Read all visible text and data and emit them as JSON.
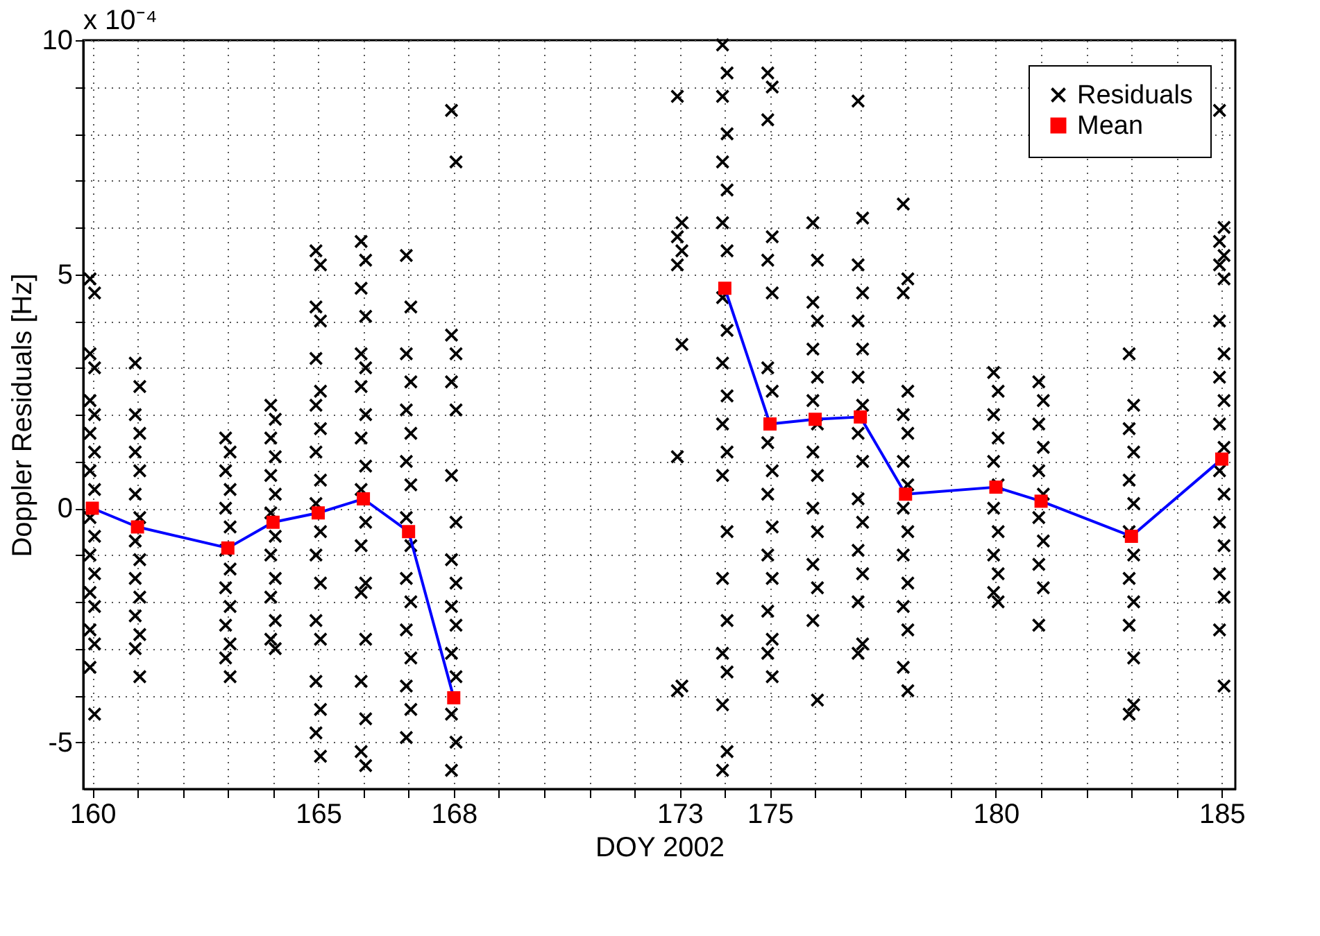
{
  "chart_data": {
    "type": "scatter",
    "xlabel": "DOY 2002",
    "ylabel": "Doppler Residuals [Hz]",
    "annotations": [
      "x 10⁻⁴"
    ],
    "xlim": [
      159.8,
      185.3
    ],
    "ylim": [
      -6,
      10
    ],
    "xticks": [
      160,
      {
        "value": 161,
        "label": null
      },
      {
        "value": 162,
        "label": null
      },
      {
        "value": 163,
        "label": null
      },
      {
        "value": 164,
        "label": null
      },
      165,
      {
        "value": 166,
        "label": null
      },
      {
        "value": 167,
        "label": null
      },
      168,
      {
        "value": 169,
        "label": null
      },
      {
        "value": 170,
        "label": null
      },
      {
        "value": 171,
        "label": null
      },
      {
        "value": 172,
        "label": null
      },
      173,
      {
        "value": 174,
        "label": null
      },
      175,
      {
        "value": 176,
        "label": null
      },
      {
        "value": 177,
        "label": null
      },
      {
        "value": 178,
        "label": null
      },
      {
        "value": 179,
        "label": null
      },
      180,
      {
        "value": 181,
        "label": null
      },
      {
        "value": 182,
        "label": null
      },
      {
        "value": 183,
        "label": null
      },
      {
        "value": 184,
        "label": null
      },
      185
    ],
    "yticks": [
      -5,
      {
        "value": -4,
        "label": null
      },
      {
        "value": -3,
        "label": null
      },
      {
        "value": -2,
        "label": null
      },
      {
        "value": -1,
        "label": null
      },
      0,
      {
        "value": 1,
        "label": null
      },
      {
        "value": 2,
        "label": null
      },
      {
        "value": 3,
        "label": null
      },
      {
        "value": 4,
        "label": null
      },
      5,
      {
        "value": 6,
        "label": null
      },
      {
        "value": 7,
        "label": null
      },
      {
        "value": 8,
        "label": null
      },
      {
        "value": 9,
        "label": null
      },
      10
    ],
    "grid": true,
    "legend": "top right",
    "series": [
      {
        "name": "Residuals",
        "marker": "cross",
        "color": "#000000",
        "x": [
          159.95,
          160.05,
          159.95,
          160.05,
          159.95,
          160.05,
          159.95,
          160.05,
          159.95,
          160.05,
          159.95,
          160.05,
          159.95,
          160.05,
          159.95,
          160.05,
          159.95,
          160.05,
          159.95,
          160.05,
          160.95,
          161.05,
          160.95,
          161.05,
          160.95,
          161.05,
          160.95,
          161.05,
          160.95,
          161.05,
          160.95,
          161.05,
          160.95,
          161.05,
          160.95,
          161.05,
          162.95,
          163.05,
          162.95,
          163.05,
          162.95,
          163.05,
          162.95,
          163.05,
          162.95,
          163.05,
          162.95,
          163.05,
          162.95,
          163.05,
          163.95,
          164.05,
          163.95,
          164.05,
          163.95,
          164.05,
          163.95,
          164.05,
          163.95,
          164.05,
          163.95,
          164.05,
          163.95,
          164.05,
          164.95,
          165.05,
          164.95,
          165.05,
          164.95,
          165.05,
          164.95,
          165.05,
          164.95,
          165.05,
          164.95,
          165.05,
          164.95,
          165.05,
          164.95,
          165.05,
          164.95,
          165.05,
          164.95,
          165.05,
          165.95,
          166.05,
          165.95,
          166.05,
          165.95,
          166.05,
          165.95,
          166.05,
          165.95,
          166.05,
          165.95,
          166.05,
          165.95,
          166.05,
          165.95,
          166.05,
          165.95,
          166.05,
          165.95,
          166.05,
          166.95,
          167.05,
          166.95,
          167.05,
          166.95,
          167.05,
          166.95,
          167.05,
          166.95,
          167.05,
          166.95,
          167.05,
          166.95,
          167.05,
          166.95,
          167.05,
          166.95,
          167.95,
          168.05,
          167.95,
          168.05,
          167.95,
          168.05,
          167.95,
          168.05,
          167.95,
          168.05,
          167.95,
          168.05,
          167.95,
          168.05,
          167.95,
          168.05,
          167.95,
          172.95,
          173.05,
          172.95,
          173.05,
          172.95,
          173.05,
          172.95,
          173.05,
          172.95,
          173.95,
          174.05,
          173.95,
          174.05,
          173.95,
          174.05,
          173.95,
          174.05,
          173.95,
          174.05,
          173.95,
          174.05,
          173.95,
          174.05,
          173.95,
          174.05,
          173.95,
          174.05,
          173.95,
          174.05,
          173.95,
          174.05,
          173.95,
          174.95,
          175.05,
          174.95,
          175.05,
          174.95,
          175.05,
          174.95,
          175.05,
          174.95,
          175.05,
          174.95,
          175.05,
          174.95,
          175.05,
          174.95,
          175.05,
          174.95,
          175.05,
          175.95,
          176.05,
          175.95,
          176.05,
          175.95,
          176.05,
          175.95,
          176.05,
          175.95,
          176.05,
          175.95,
          176.05,
          175.95,
          176.05,
          175.95,
          176.05,
          176.95,
          177.05,
          176.95,
          177.05,
          176.95,
          177.05,
          176.95,
          177.05,
          176.95,
          177.05,
          176.95,
          177.05,
          176.95,
          177.05,
          176.95,
          177.05,
          176.95,
          177.95,
          178.05,
          177.95,
          178.05,
          177.95,
          178.05,
          177.95,
          178.05,
          177.95,
          178.05,
          177.95,
          178.05,
          177.95,
          178.05,
          177.95,
          178.05,
          179.95,
          180.05,
          179.95,
          180.05,
          179.95,
          180.05,
          179.95,
          180.05,
          179.95,
          180.05,
          179.95,
          180.05,
          180.95,
          181.05,
          180.95,
          181.05,
          180.95,
          181.05,
          180.95,
          181.05,
          180.95,
          181.05,
          180.95,
          182.95,
          183.05,
          182.95,
          183.05,
          182.95,
          183.05,
          182.95,
          183.05,
          182.95,
          183.05,
          182.95,
          183.05,
          182.95,
          183.05,
          184.95,
          185.05,
          184.95,
          185.05,
          184.95,
          185.05,
          184.95,
          185.05,
          184.95,
          185.05,
          184.95,
          185.05,
          184.95,
          185.05,
          184.95,
          185.05,
          184.95,
          185.05,
          184.95,
          185.05
        ],
        "values": [
          4.9,
          4.6,
          3.3,
          3.0,
          2.3,
          2.0,
          1.6,
          1.2,
          0.8,
          0.4,
          -0.2,
          -0.6,
          -1.0,
          -1.4,
          -1.8,
          -2.1,
          -2.6,
          -2.9,
          -3.4,
          -4.4,
          3.1,
          2.6,
          2.0,
          1.6,
          1.2,
          0.8,
          0.3,
          -0.2,
          -0.7,
          -1.1,
          -1.5,
          -1.9,
          -2.3,
          -2.7,
          -3.0,
          -3.6,
          1.5,
          1.2,
          0.8,
          0.4,
          0.0,
          -0.4,
          -0.9,
          -1.3,
          -1.7,
          -2.1,
          -2.5,
          -2.9,
          -3.2,
          -3.6,
          2.2,
          1.9,
          1.5,
          1.1,
          0.7,
          0.3,
          -0.1,
          -0.6,
          -1.0,
          -1.5,
          -1.9,
          -2.4,
          -2.8,
          -3.0,
          5.5,
          5.2,
          4.3,
          4.0,
          3.2,
          2.5,
          2.2,
          1.7,
          1.2,
          0.6,
          0.1,
          -0.5,
          -1.0,
          -1.6,
          -2.4,
          -2.8,
          -3.7,
          -4.3,
          -4.8,
          -5.3,
          5.7,
          5.3,
          4.7,
          4.1,
          3.3,
          3.0,
          2.6,
          2.0,
          1.5,
          0.9,
          0.4,
          -0.3,
          -0.8,
          -1.6,
          -1.8,
          -2.8,
          -3.7,
          -4.5,
          -5.2,
          -5.5,
          5.4,
          4.3,
          3.3,
          2.7,
          2.1,
          1.6,
          1.0,
          0.5,
          -0.2,
          -0.8,
          -1.5,
          -2.0,
          -2.6,
          -3.2,
          -3.8,
          -4.3,
          -4.9,
          8.5,
          7.4,
          3.7,
          3.3,
          2.7,
          2.1,
          0.7,
          -0.3,
          -1.1,
          -1.6,
          -2.1,
          -2.5,
          -3.1,
          -3.6,
          -4.4,
          -5.0,
          -5.6,
          8.8,
          6.1,
          5.8,
          5.5,
          5.2,
          3.5,
          1.1,
          -3.8,
          -3.9,
          9.9,
          9.3,
          8.8,
          8.0,
          7.4,
          6.8,
          6.1,
          5.5,
          4.5,
          3.8,
          3.1,
          2.4,
          1.8,
          1.2,
          0.7,
          -0.5,
          -1.5,
          -2.4,
          -3.1,
          -3.5,
          -4.2,
          -5.2,
          -5.6,
          9.3,
          9.0,
          8.3,
          5.8,
          5.3,
          4.6,
          3.0,
          2.5,
          1.4,
          0.8,
          0.3,
          -0.4,
          -1.0,
          -1.5,
          -2.2,
          -2.8,
          -3.1,
          -3.6,
          6.1,
          5.3,
          4.4,
          4.0,
          3.4,
          2.8,
          2.3,
          1.8,
          1.2,
          0.7,
          0.0,
          -0.5,
          -1.2,
          -1.7,
          -2.4,
          -4.1,
          8.7,
          6.2,
          5.2,
          4.6,
          4.0,
          3.4,
          2.8,
          2.2,
          1.6,
          1.0,
          0.2,
          -0.3,
          -0.9,
          -1.4,
          -2.0,
          -2.9,
          -3.1,
          6.5,
          4.9,
          4.6,
          2.5,
          2.0,
          1.6,
          1.0,
          0.5,
          0.0,
          -0.5,
          -1.0,
          -1.6,
          -2.1,
          -2.6,
          -3.4,
          -3.9,
          2.9,
          2.5,
          2.0,
          1.5,
          1.0,
          0.5,
          0.0,
          -0.5,
          -1.0,
          -1.4,
          -1.8,
          -2.0,
          2.7,
          2.3,
          1.8,
          1.3,
          0.8,
          0.3,
          -0.2,
          -0.7,
          -1.2,
          -1.7,
          -2.5,
          3.3,
          2.2,
          1.7,
          1.2,
          0.6,
          0.1,
          -0.5,
          -1.0,
          -1.5,
          -2.0,
          -2.5,
          -3.2,
          -4.4,
          -4.2,
          8.5,
          6.0,
          5.7,
          5.4,
          5.2,
          4.9,
          4.0,
          3.3,
          2.8,
          2.3,
          1.8,
          1.3,
          0.8,
          0.3,
          -0.3,
          -0.8,
          -1.4,
          -1.9,
          -2.6,
          -3.8
        ]
      },
      {
        "name": "Mean",
        "type": "line",
        "marker": "square",
        "color": "#0000ff",
        "colors": [
          "#ff0000",
          "#ff0000",
          "#ff0000",
          "#ff0000",
          "#ff0000",
          "#ff0000",
          "#ff0000",
          "#ff0000",
          "#ff0000",
          "#ff0000",
          "#ff0000",
          "#ff0000",
          "#ff0000",
          "#ff0000",
          "#ff0000",
          "#ff0000",
          "#ff0000",
          "#ff0000"
        ],
        "x": [
          160,
          161,
          163,
          164,
          165,
          166,
          167,
          168,
          173,
          174,
          175,
          176,
          177,
          178,
          180,
          181,
          183,
          185
        ],
        "values": [
          0.0,
          -0.4,
          -0.85,
          -0.3,
          -0.1,
          0.2,
          -0.5,
          -4.05,
          null,
          4.7,
          1.8,
          1.9,
          1.95,
          0.3,
          0.45,
          0.15,
          -0.6,
          1.05
        ]
      }
    ]
  }
}
